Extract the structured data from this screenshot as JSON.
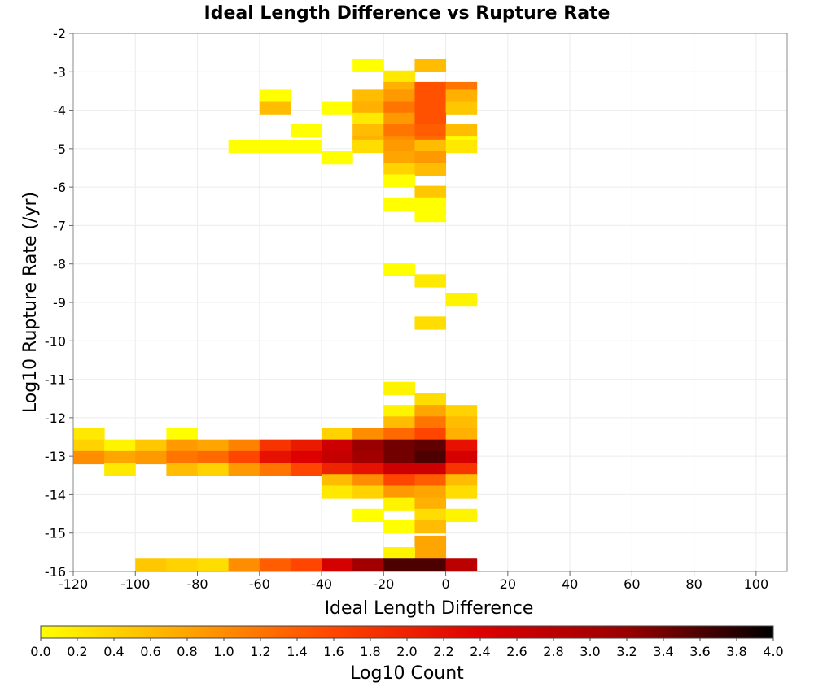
{
  "chart_data": {
    "type": "heatmap",
    "title": "Ideal Length Difference vs Rupture Rate",
    "xlabel": "Ideal Length Difference",
    "ylabel": "Log10 Rupture Rate (/yr)",
    "xlim": [
      -120,
      110
    ],
    "ylim": [
      -16,
      -2
    ],
    "x_bin_width": 10,
    "y_bin_height": 0.333,
    "x_ticks": [
      -120,
      -100,
      -80,
      -60,
      -40,
      -20,
      0,
      20,
      40,
      60,
      80,
      100
    ],
    "y_ticks": [
      -16,
      -15,
      -14,
      -13,
      -12,
      -11,
      -10,
      -9,
      -8,
      -7,
      -6,
      -5,
      -4,
      -3,
      -2
    ],
    "grid": true,
    "colorbar": {
      "label": "Log10 Count",
      "range": [
        0.0,
        4.0
      ],
      "ticks": [
        "0.0",
        "0.2",
        "0.4",
        "0.6",
        "0.8",
        "1.0",
        "1.2",
        "1.4",
        "1.6",
        "1.8",
        "2.0",
        "2.2",
        "2.4",
        "2.6",
        "2.8",
        "3.0",
        "3.2",
        "3.4",
        "3.6",
        "3.8",
        "4.0"
      ],
      "colors": [
        "#ffff00",
        "#ffa500",
        "#ff4500",
        "#dd0000",
        "#990000",
        "#000000"
      ]
    },
    "cells": [
      [
        -30,
        -3.0,
        0.0
      ],
      [
        -20,
        -3.3,
        0.2
      ],
      [
        -10,
        -3.0,
        0.6
      ],
      [
        -20,
        -3.6,
        0.7
      ],
      [
        -10,
        -3.6,
        1.5
      ],
      [
        0,
        -3.6,
        1.2
      ],
      [
        -60,
        -3.8,
        0.0
      ],
      [
        -30,
        -3.8,
        0.6
      ],
      [
        -20,
        -3.8,
        0.9
      ],
      [
        -10,
        -3.8,
        1.5
      ],
      [
        0,
        -3.8,
        0.7
      ],
      [
        -60,
        -4.1,
        0.6
      ],
      [
        -40,
        -4.1,
        0.0
      ],
      [
        -30,
        -4.1,
        0.7
      ],
      [
        -20,
        -4.1,
        1.2
      ],
      [
        -10,
        -4.1,
        1.5
      ],
      [
        0,
        -4.1,
        0.5
      ],
      [
        -30,
        -4.4,
        0.2
      ],
      [
        -20,
        -4.4,
        0.9
      ],
      [
        -10,
        -4.4,
        1.5
      ],
      [
        -50,
        -4.7,
        0.0
      ],
      [
        -30,
        -4.7,
        0.6
      ],
      [
        -20,
        -4.7,
        1.2
      ],
      [
        -10,
        -4.7,
        1.4
      ],
      [
        0,
        -4.7,
        0.6
      ],
      [
        -30,
        -5.0,
        0.7
      ],
      [
        -20,
        -5.0,
        1.0
      ],
      [
        -10,
        -5.0,
        1.3
      ],
      [
        0,
        -5.0,
        0.0
      ],
      [
        -70,
        -5.1,
        0.0
      ],
      [
        -60,
        -5.1,
        0.0
      ],
      [
        -50,
        -5.1,
        0.0
      ],
      [
        -30,
        -5.1,
        0.3
      ],
      [
        -20,
        -5.1,
        0.9
      ],
      [
        -10,
        -5.1,
        0.6
      ],
      [
        0,
        -5.1,
        0.2
      ],
      [
        -40,
        -5.4,
        0.0
      ],
      [
        -20,
        -5.4,
        0.8
      ],
      [
        -10,
        -5.4,
        0.9
      ],
      [
        -20,
        -5.7,
        0.4
      ],
      [
        -10,
        -5.7,
        0.6
      ],
      [
        -20,
        -6.0,
        0.0
      ],
      [
        -10,
        -6.3,
        0.5
      ],
      [
        -20,
        -6.6,
        0.0
      ],
      [
        -10,
        -6.6,
        0.0
      ],
      [
        -10,
        -6.9,
        0.0
      ],
      [
        -20,
        -8.3,
        0.0
      ],
      [
        -10,
        -8.6,
        0.2
      ],
      [
        0,
        -9.1,
        0.1
      ],
      [
        -10,
        -9.7,
        0.3
      ],
      [
        -20,
        -11.4,
        0.1
      ],
      [
        -10,
        -11.7,
        0.3
      ],
      [
        -20,
        -12.0,
        0.1
      ],
      [
        -10,
        -12.0,
        0.8
      ],
      [
        0,
        -12.0,
        0.4
      ],
      [
        -20,
        -12.3,
        0.6
      ],
      [
        -10,
        -12.3,
        1.2
      ],
      [
        0,
        -12.3,
        0.6
      ],
      [
        -120,
        -12.6,
        0.2
      ],
      [
        -90,
        -12.6,
        0.0
      ],
      [
        -40,
        -12.6,
        0.4
      ],
      [
        -30,
        -12.6,
        1.0
      ],
      [
        -20,
        -12.6,
        1.3
      ],
      [
        -10,
        -12.6,
        1.6
      ],
      [
        0,
        -12.6,
        0.7
      ],
      [
        -120,
        -12.9,
        0.4
      ],
      [
        -110,
        -12.9,
        0.1
      ],
      [
        -100,
        -12.9,
        0.5
      ],
      [
        -90,
        -12.9,
        0.9
      ],
      [
        -80,
        -12.9,
        0.8
      ],
      [
        -70,
        -12.9,
        1.1
      ],
      [
        -60,
        -12.9,
        1.8
      ],
      [
        -50,
        -12.9,
        2.1
      ],
      [
        -40,
        -12.9,
        2.6
      ],
      [
        -30,
        -12.9,
        3.2
      ],
      [
        -20,
        -12.9,
        3.4
      ],
      [
        -10,
        -12.9,
        3.5
      ],
      [
        0,
        -12.9,
        2.2
      ],
      [
        -120,
        -13.2,
        1.0
      ],
      [
        -110,
        -13.2,
        0.8
      ],
      [
        -100,
        -13.2,
        0.9
      ],
      [
        -90,
        -13.2,
        1.2
      ],
      [
        -80,
        -13.2,
        1.3
      ],
      [
        -70,
        -13.2,
        1.6
      ],
      [
        -60,
        -13.2,
        2.2
      ],
      [
        -50,
        -13.2,
        2.4
      ],
      [
        -40,
        -13.2,
        2.7
      ],
      [
        -30,
        -13.2,
        3.1
      ],
      [
        -20,
        -13.2,
        3.4
      ],
      [
        -10,
        -13.2,
        3.6
      ],
      [
        0,
        -13.2,
        2.5
      ],
      [
        -110,
        -13.5,
        0.2
      ],
      [
        -90,
        -13.5,
        0.6
      ],
      [
        -80,
        -13.5,
        0.4
      ],
      [
        -70,
        -13.5,
        0.9
      ],
      [
        -60,
        -13.5,
        1.2
      ],
      [
        -50,
        -13.5,
        1.6
      ],
      [
        -40,
        -13.5,
        2.0
      ],
      [
        -30,
        -13.5,
        2.2
      ],
      [
        -20,
        -13.5,
        2.6
      ],
      [
        -10,
        -13.5,
        2.6
      ],
      [
        0,
        -13.5,
        1.8
      ],
      [
        -40,
        -13.8,
        0.6
      ],
      [
        -30,
        -13.8,
        1.0
      ],
      [
        -20,
        -13.8,
        1.6
      ],
      [
        -10,
        -13.8,
        1.4
      ],
      [
        0,
        -13.8,
        0.6
      ],
      [
        -40,
        -14.1,
        0.2
      ],
      [
        -30,
        -14.1,
        0.4
      ],
      [
        -20,
        -14.1,
        0.9
      ],
      [
        -10,
        -14.1,
        0.8
      ],
      [
        0,
        -14.1,
        0.3
      ],
      [
        -20,
        -14.4,
        0.1
      ],
      [
        -10,
        -14.4,
        0.7
      ],
      [
        -30,
        -14.7,
        0.0
      ],
      [
        -10,
        -14.7,
        0.3
      ],
      [
        0,
        -14.7,
        0.1
      ],
      [
        -20,
        -15.0,
        0.0
      ],
      [
        -10,
        -15.0,
        0.6
      ],
      [
        -10,
        -15.4,
        0.8
      ],
      [
        -10,
        -15.7,
        0.8
      ],
      [
        -20,
        -15.7,
        0.1
      ],
      [
        -100,
        -16.0,
        0.5
      ],
      [
        -90,
        -16.0,
        0.4
      ],
      [
        -80,
        -16.0,
        0.3
      ],
      [
        -70,
        -16.0,
        1.0
      ],
      [
        -60,
        -16.0,
        1.4
      ],
      [
        -50,
        -16.0,
        1.6
      ],
      [
        -40,
        -16.0,
        2.5
      ],
      [
        -30,
        -16.0,
        3.1
      ],
      [
        -20,
        -16.0,
        3.6
      ],
      [
        -10,
        -16.0,
        3.6
      ],
      [
        0,
        -16.0,
        2.8
      ]
    ]
  }
}
